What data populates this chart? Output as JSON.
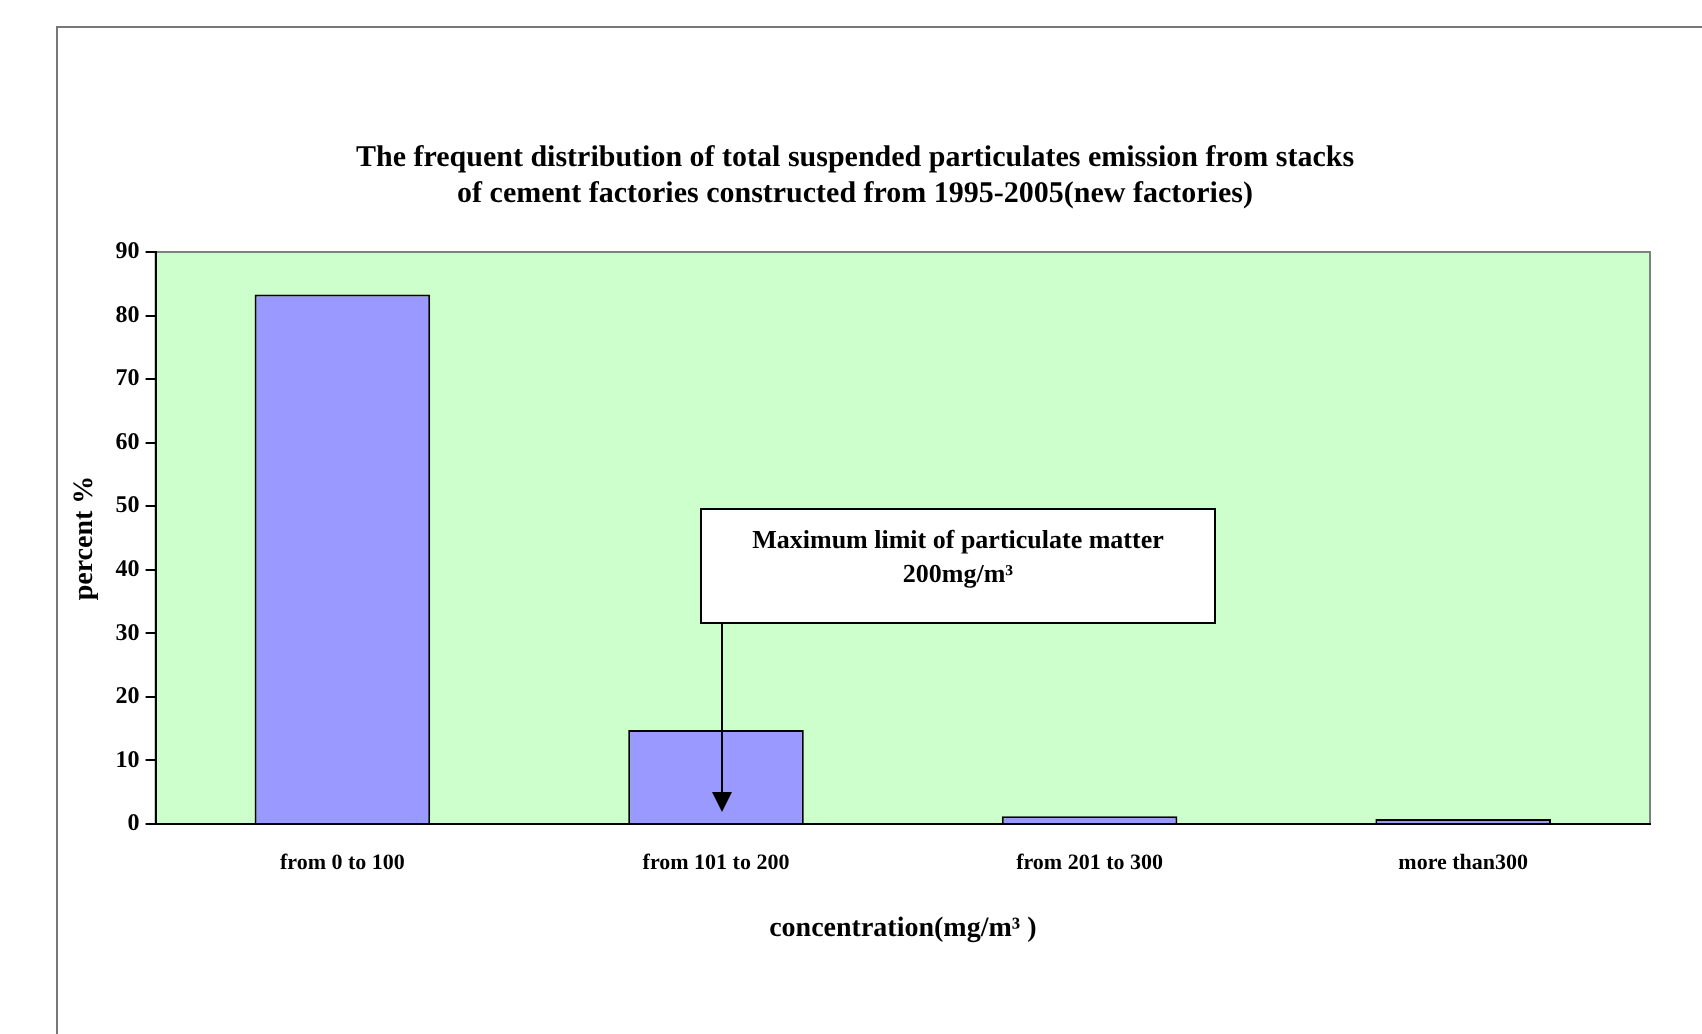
{
  "chart_data": {
    "type": "bar",
    "title": [
      "The frequent distribution of total suspended particulates emission from stacks",
      "of cement factories constructed from 1995-2005(new factories)"
    ],
    "xlabel": "concentration(mg/m³ )",
    "ylabel": "percent %",
    "categories": [
      "from 0 to 100",
      "from 101 to 200",
      "from 201 to 300",
      "more than300"
    ],
    "values": [
      83.3,
      14.8,
      1.2,
      0.8
    ],
    "color": "#9999ff",
    "ylim": [
      0,
      90
    ],
    "yticks": [
      0,
      10,
      20,
      30,
      40,
      50,
      60,
      70,
      80,
      90
    ],
    "grid": false,
    "legend": false,
    "annotations": [
      "Maximum limit of particulate matter 200mg/m³"
    ]
  }
}
